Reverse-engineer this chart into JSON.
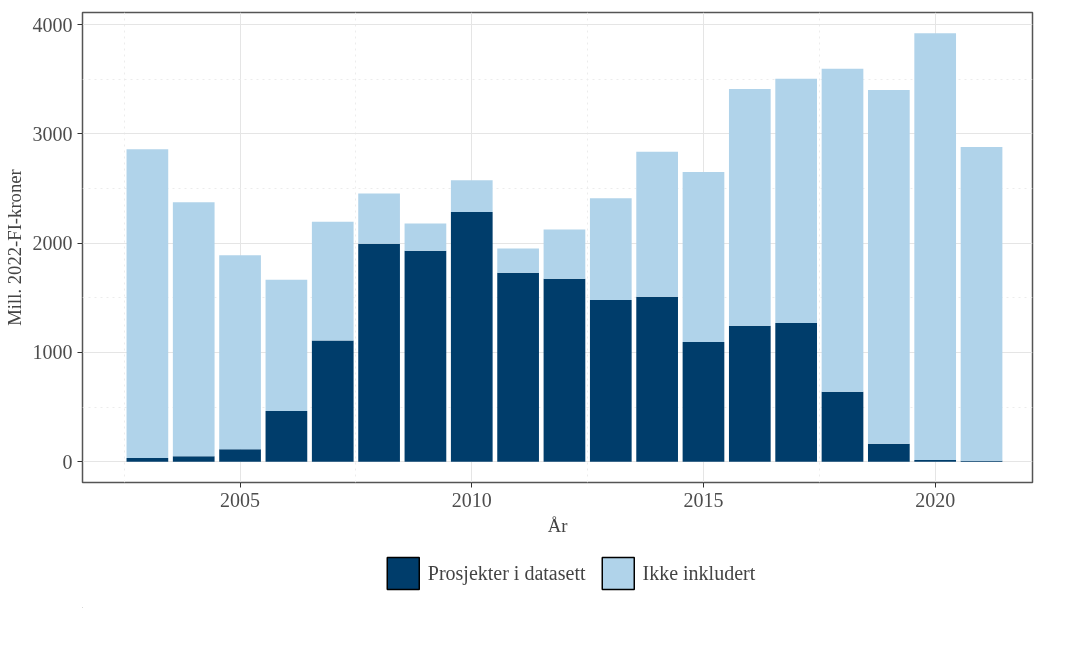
{
  "chart_data": {
    "type": "bar",
    "stacked": true,
    "xlabel": "År",
    "ylabel": "Mill. 2022-FI-kroner",
    "x": [
      2003,
      2004,
      2005,
      2006,
      2007,
      2008,
      2009,
      2010,
      2011,
      2012,
      2013,
      2014,
      2015,
      2016,
      2017,
      2018,
      2019,
      2020,
      2021
    ],
    "series": [
      {
        "name": "Prosjekter i datasett",
        "color": "#003d6b",
        "values": [
          35,
          50,
          115,
          465,
          1110,
          1995,
          1930,
          2285,
          1730,
          1675,
          1480,
          1510,
          1095,
          1245,
          1270,
          640,
          165,
          15,
          10
        ]
      },
      {
        "name": "Ikke inkludert",
        "color": "#b0d3ea",
        "values": [
          2825,
          2325,
          1775,
          1200,
          1085,
          460,
          250,
          290,
          220,
          450,
          930,
          1325,
          1555,
          2165,
          2235,
          2955,
          3235,
          3905,
          2870
        ]
      }
    ],
    "xlim": [
      2001.6,
      2022.1
    ],
    "xticks": [
      2005,
      2010,
      2015,
      2020
    ],
    "ylim": [
      -190,
      4110
    ],
    "yticks": [
      0,
      1000,
      2000,
      3000,
      4000
    ],
    "grid": true,
    "legend": "bottom"
  }
}
